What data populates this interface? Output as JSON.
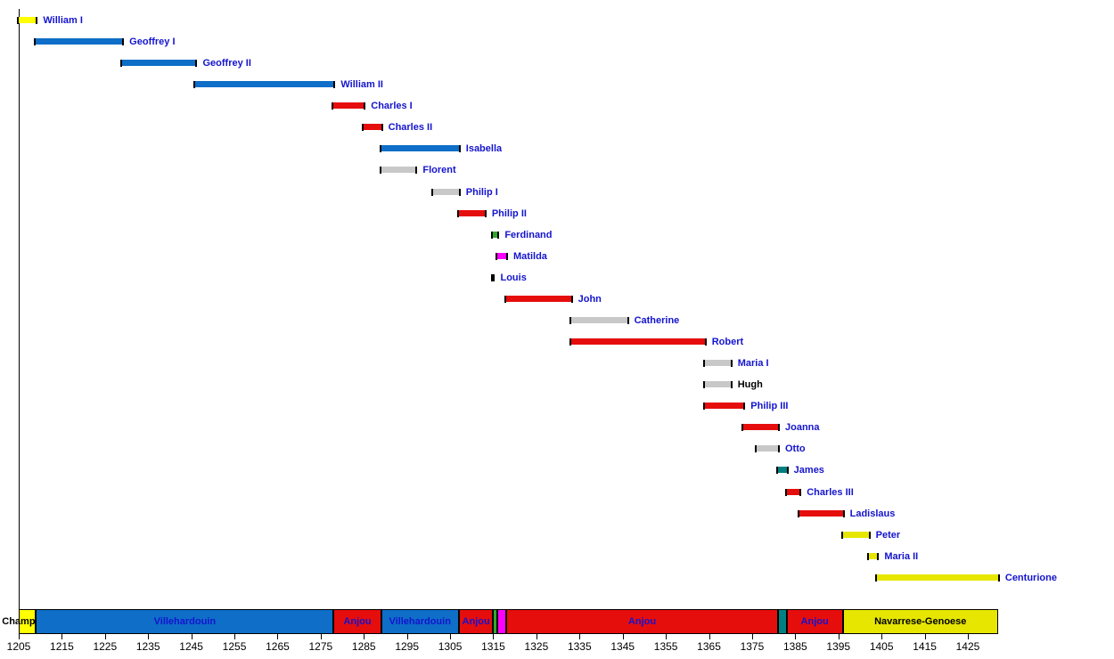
{
  "palette": {
    "yellow": "#FFFF00",
    "yellow2": "#E6E600",
    "blue": "#0E6EC8",
    "red": "#E60D0D",
    "gray": "#C8C8C8",
    "green": "#33A62B",
    "magenta": "#FF00FF",
    "teal": "#008080",
    "link": "#1414CE",
    "black": "#000000",
    "axis": "#000000",
    "background": "#FFFFFF"
  },
  "chart_data": {
    "type": "bar",
    "subtype": "timeline-gantt",
    "title": "",
    "xlabel": "",
    "ylabel": "",
    "xlim": [
      1205,
      1432
    ],
    "x_ticks": [
      1205,
      1215,
      1225,
      1235,
      1245,
      1255,
      1265,
      1275,
      1285,
      1295,
      1305,
      1315,
      1325,
      1335,
      1345,
      1355,
      1365,
      1375,
      1385,
      1395,
      1405,
      1415,
      1425
    ],
    "grid": false,
    "legend": false,
    "rows": [
      {
        "label": "William I",
        "start": 1205,
        "end": 1209,
        "color": "yellow",
        "label_color": "link"
      },
      {
        "label": "Geoffrey I",
        "start": 1209,
        "end": 1229,
        "color": "blue",
        "label_color": "link"
      },
      {
        "label": "Geoffrey II",
        "start": 1229,
        "end": 1246,
        "color": "blue",
        "label_color": "link"
      },
      {
        "label": "William II",
        "start": 1246,
        "end": 1278,
        "color": "blue",
        "label_color": "link"
      },
      {
        "label": "Charles I",
        "start": 1278,
        "end": 1285,
        "color": "red",
        "label_color": "link"
      },
      {
        "label": "Charles II",
        "start": 1285,
        "end": 1289,
        "color": "red",
        "label_color": "link"
      },
      {
        "label": "Isabella",
        "start": 1289,
        "end": 1307,
        "color": "blue",
        "label_color": "link"
      },
      {
        "label": "Florent",
        "start": 1289,
        "end": 1297,
        "color": "gray",
        "label_color": "link"
      },
      {
        "label": "Philip I",
        "start": 1301,
        "end": 1307,
        "color": "gray",
        "label_color": "link"
      },
      {
        "label": "Philip II",
        "start": 1307,
        "end": 1313,
        "color": "red",
        "label_color": "link"
      },
      {
        "label": "Ferdinand",
        "start": 1315,
        "end": 1316,
        "color": "green",
        "label_color": "link"
      },
      {
        "label": "Matilda",
        "start": 1316,
        "end": 1318,
        "color": "magenta",
        "label_color": "link"
      },
      {
        "label": "Louis",
        "start": 1315,
        "end": 1315,
        "color": "gray",
        "label_color": "link"
      },
      {
        "label": "John",
        "start": 1318,
        "end": 1333,
        "color": "red",
        "label_color": "link"
      },
      {
        "label": "Catherine",
        "start": 1333,
        "end": 1346,
        "color": "gray",
        "label_color": "link"
      },
      {
        "label": "Robert",
        "start": 1333,
        "end": 1364,
        "color": "red",
        "label_color": "link"
      },
      {
        "label": "Maria I",
        "start": 1364,
        "end": 1370,
        "color": "gray",
        "label_color": "link"
      },
      {
        "label": "Hugh",
        "start": 1364,
        "end": 1370,
        "color": "gray",
        "label_color": "black"
      },
      {
        "label": "Philip III",
        "start": 1364,
        "end": 1373,
        "color": "red",
        "label_color": "link"
      },
      {
        "label": "Joanna",
        "start": 1373,
        "end": 1381,
        "color": "red",
        "label_color": "link"
      },
      {
        "label": "Otto",
        "start": 1376,
        "end": 1381,
        "color": "gray",
        "label_color": "link"
      },
      {
        "label": "James",
        "start": 1381,
        "end": 1383,
        "color": "teal",
        "label_color": "link"
      },
      {
        "label": "Charles III",
        "start": 1383,
        "end": 1386,
        "color": "red",
        "label_color": "link"
      },
      {
        "label": "Ladislaus",
        "start": 1386,
        "end": 1396,
        "color": "red",
        "label_color": "link"
      },
      {
        "label": "Peter",
        "start": 1396,
        "end": 1402,
        "color": "yellow2",
        "label_color": "link"
      },
      {
        "label": "Maria II",
        "start": 1402,
        "end": 1404,
        "color": "yellow2",
        "label_color": "link"
      },
      {
        "label": "Centurione",
        "start": 1404,
        "end": 1432,
        "color": "yellow2",
        "label_color": "link"
      }
    ],
    "dynasty_band": [
      {
        "label": "Champlitte",
        "start": 1205,
        "end": 1209,
        "color": "yellow",
        "label_color": "black"
      },
      {
        "label": "Villehardouin",
        "start": 1209,
        "end": 1278,
        "color": "blue",
        "label_color": "link"
      },
      {
        "label": "Anjou",
        "start": 1278,
        "end": 1289,
        "color": "red",
        "label_color": "link"
      },
      {
        "label": "Villehardouin",
        "start": 1289,
        "end": 1307,
        "color": "blue",
        "label_color": "link"
      },
      {
        "label": "Anjou",
        "start": 1307,
        "end": 1315,
        "color": "red",
        "label_color": "link"
      },
      {
        "label": "",
        "start": 1315,
        "end": 1316,
        "color": "green",
        "label_color": "black"
      },
      {
        "label": "",
        "start": 1316,
        "end": 1318,
        "color": "magenta",
        "label_color": "black"
      },
      {
        "label": "Anjou",
        "start": 1318,
        "end": 1381,
        "color": "red",
        "label_color": "link"
      },
      {
        "label": "",
        "start": 1381,
        "end": 1383,
        "color": "teal",
        "label_color": "black"
      },
      {
        "label": "Anjou",
        "start": 1383,
        "end": 1396,
        "color": "red",
        "label_color": "link"
      },
      {
        "label": "Navarrese-Genoese",
        "start": 1396,
        "end": 1432,
        "color": "yellow2",
        "label_color": "black"
      }
    ]
  }
}
